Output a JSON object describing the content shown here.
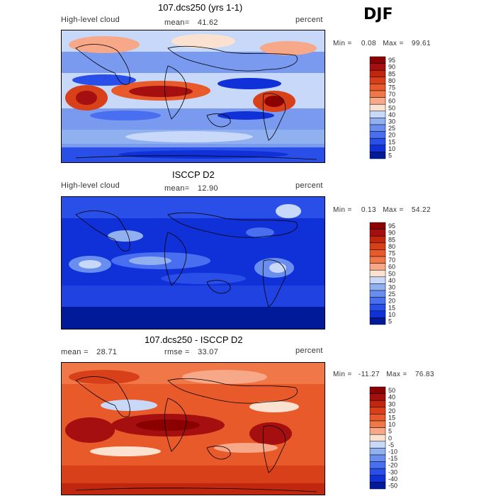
{
  "season": "DJF",
  "panels": [
    {
      "title": "107.dcs250 (yrs 1-1)",
      "left_label": "High-level cloud",
      "center_label": "mean=",
      "center_value": "41.62",
      "right_label": "percent",
      "min_label": "Min =",
      "min_value": "0.08",
      "max_label": "Max =",
      "max_value": "99.61",
      "levels": [
        "95",
        "90",
        "85",
        "80",
        "75",
        "70",
        "60",
        "50",
        "40",
        "30",
        "25",
        "20",
        "15",
        "10",
        "5"
      ]
    },
    {
      "title": "ISCCP D2",
      "left_label": "High-level cloud",
      "center_label": "mean=",
      "center_value": "12.90",
      "right_label": "percent",
      "min_label": "Min =",
      "min_value": "0.13",
      "max_label": "Max =",
      "max_value": "54.22",
      "levels": [
        "95",
        "90",
        "85",
        "80",
        "75",
        "70",
        "60",
        "50",
        "40",
        "30",
        "25",
        "20",
        "15",
        "10",
        "5"
      ]
    },
    {
      "title": "107.dcs250 - ISCCP D2",
      "left_label": "mean =",
      "left_value": "28.71",
      "center_label": "rmse =",
      "center_value": "33.07",
      "right_label": "percent",
      "min_label": "Min =",
      "min_value": "-11.27",
      "max_label": "Max =",
      "max_value": "76.83",
      "levels": [
        "50",
        "40",
        "30",
        "20",
        "15",
        "10",
        "5",
        "0",
        "-5",
        "-10",
        "-15",
        "-20",
        "-30",
        "-40",
        "-50"
      ]
    }
  ],
  "colors": {
    "palette": [
      "#8b0000",
      "#a50f0f",
      "#c0270f",
      "#d8401a",
      "#e85a2a",
      "#f07848",
      "#f6a888",
      "#fbe2d0",
      "#c8d8f8",
      "#90b0f0",
      "#6a8ef0",
      "#4a6ef0",
      "#2a4ee8",
      "#1030d8",
      "#001a9a"
    ]
  },
  "chart_data": [
    {
      "type": "heatmap",
      "title": "107.dcs250 (yrs 1-1)",
      "variable": "High-level cloud",
      "units": "percent",
      "mean": 41.62,
      "min": 0.08,
      "max": 99.61,
      "contour_levels": [
        5,
        10,
        15,
        20,
        25,
        30,
        40,
        50,
        60,
        70,
        75,
        80,
        85,
        90,
        95
      ]
    },
    {
      "type": "heatmap",
      "title": "ISCCP D2",
      "variable": "High-level cloud",
      "units": "percent",
      "mean": 12.9,
      "min": 0.13,
      "max": 54.22,
      "contour_levels": [
        5,
        10,
        15,
        20,
        25,
        30,
        40,
        50,
        60,
        70,
        75,
        80,
        85,
        90,
        95
      ]
    },
    {
      "type": "heatmap",
      "title": "107.dcs250 - ISCCP D2",
      "units": "percent",
      "mean": 28.71,
      "rmse": 33.07,
      "min": -11.27,
      "max": 76.83,
      "contour_levels": [
        -50,
        -40,
        -30,
        -20,
        -15,
        -10,
        -5,
        0,
        5,
        10,
        15,
        20,
        30,
        40,
        50
      ]
    }
  ]
}
